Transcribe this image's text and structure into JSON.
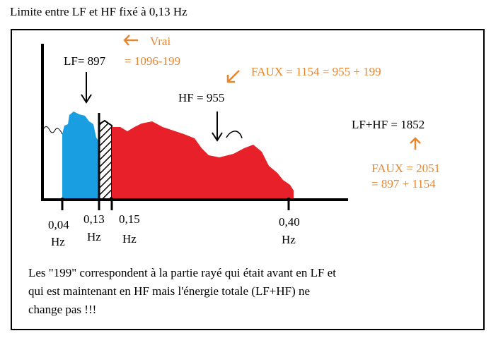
{
  "title": "Limite entre LF et HF fixé à 0,13 Hz",
  "annotations": {
    "vrai": "Vrai",
    "lf": "LF=  897",
    "lf_calc": "= 1096-199",
    "faux_hf": "FAUX = 1154  = 955 + 199",
    "hf": "HF = 955",
    "total": "LF+HF = 1852",
    "faux_total": "FAUX = 2051",
    "faux_total_calc": "= 897 + 1154"
  },
  "axis_labels": [
    {
      "value": "0,04",
      "unit": "Hz"
    },
    {
      "value": "0,13",
      "unit": "Hz"
    },
    {
      "value": "0,15",
      "unit": "Hz"
    },
    {
      "value": "0,40",
      "unit": "Hz"
    }
  ],
  "note": [
    "Les \"199\" correspondent à la partie rayé qui était avant en LF et",
    "qui est maintenant en HF mais l'énergie totale (LF+HF) ne",
    "change pas !!!"
  ]
}
